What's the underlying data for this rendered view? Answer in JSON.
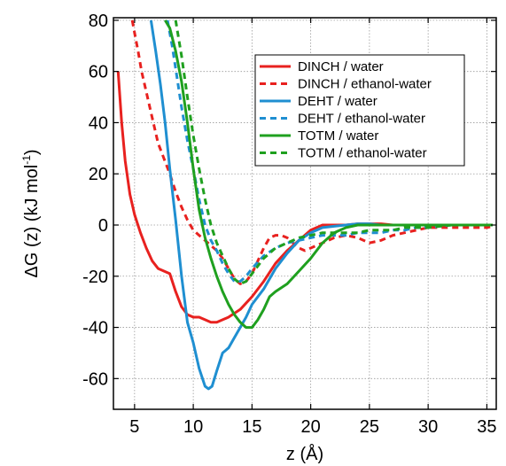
{
  "chart_data": {
    "type": "line",
    "xlabel": "z (Å)",
    "ylabel": "ΔG (z) (kJ mol",
    "ylabel_sup": "-1",
    "ylabel_close": ")",
    "xlim": [
      3.2,
      35.8
    ],
    "ylim": [
      -72,
      81
    ],
    "xticks": [
      5,
      10,
      15,
      20,
      25,
      30,
      35
    ],
    "xtick_labels": [
      "5",
      "10",
      "15",
      "20",
      "25",
      "30",
      "35"
    ],
    "yticks": [
      -60,
      -40,
      -20,
      0,
      20,
      40,
      60,
      80
    ],
    "ytick_labels": [
      "-60",
      "-40",
      "-20",
      "0",
      "20",
      "40",
      "60",
      "80"
    ],
    "grid": true,
    "legend_position": "top-right",
    "series": [
      {
        "name": "DINCH / water",
        "color": "#e8211f",
        "dash": "solid",
        "x": [
          3.6,
          3.9,
          4.2,
          4.6,
          5.0,
          5.5,
          6.0,
          6.5,
          7.0,
          7.5,
          8.0,
          8.5,
          9.0,
          9.5,
          10.0,
          10.5,
          11.0,
          11.5,
          12.0,
          13.0,
          14.0,
          15.0,
          16.0,
          17.0,
          18.0,
          19.0,
          20.0,
          21.0,
          22.0,
          23.0,
          24.0,
          25.0,
          26.0,
          27.0,
          28.0,
          29.0,
          30.0,
          32.0,
          34.0,
          35.5
        ],
        "y": [
          60,
          40,
          25,
          12,
          4,
          -3,
          -9,
          -14,
          -17,
          -18,
          -19,
          -26,
          -32,
          -35,
          -36,
          -36,
          -37,
          -38,
          -38,
          -36,
          -33,
          -28,
          -22,
          -15,
          -10,
          -6,
          -2,
          0,
          0,
          0,
          0.5,
          0.5,
          0.5,
          0,
          0,
          0,
          0,
          0,
          0,
          0
        ]
      },
      {
        "name": "DINCH / ethanol-water",
        "color": "#e8211f",
        "dash": "dashed",
        "x": [
          4.8,
          5.0,
          5.3,
          5.6,
          6.0,
          6.5,
          7.0,
          7.5,
          8.0,
          8.5,
          9.0,
          9.5,
          10.0,
          10.5,
          11.0,
          11.5,
          12.0,
          12.5,
          13.0,
          13.5,
          14.0,
          14.5,
          15.0,
          15.5,
          16.0,
          16.5,
          17.0,
          17.5,
          18.0,
          18.5,
          19.0,
          19.5,
          20.0,
          21.0,
          22.0,
          23.0,
          24.0,
          25.0,
          26.0,
          27.0,
          28.0,
          29.0,
          30.0,
          31.0,
          32.0,
          33.0,
          34.0,
          35.0,
          35.5
        ],
        "y": [
          80,
          75,
          68,
          60,
          52,
          42,
          32,
          26,
          20,
          13,
          7,
          2,
          -2,
          -4,
          -6,
          -8,
          -10,
          -13,
          -17,
          -21,
          -23,
          -22,
          -19,
          -14,
          -9,
          -5,
          -4,
          -4,
          -5,
          -7,
          -9,
          -10,
          -9,
          -7,
          -5,
          -4,
          -5,
          -7,
          -6,
          -4,
          -3,
          -2,
          -1,
          -1,
          -1,
          -1,
          -1,
          -1,
          -0.5
        ]
      },
      {
        "name": "DEHT / water",
        "color": "#1f8fd1",
        "dash": "solid",
        "x": [
          6.4,
          6.8,
          7.2,
          7.6,
          8.0,
          8.5,
          9.0,
          9.5,
          10.0,
          10.5,
          11.0,
          11.3,
          11.6,
          12.0,
          12.5,
          13.0,
          13.5,
          14.0,
          14.5,
          15.0,
          16.0,
          17.0,
          18.0,
          19.0,
          20.0,
          21.0,
          22.0,
          23.0,
          24.0,
          25.0,
          26.0,
          27.0,
          28.0,
          30.0,
          32.0,
          35.5
        ],
        "y": [
          80,
          68,
          55,
          40,
          22,
          2,
          -20,
          -38,
          -46,
          -56,
          -63,
          -64,
          -63,
          -57,
          -50,
          -48,
          -44,
          -40,
          -36,
          -31,
          -25,
          -17,
          -11,
          -6,
          -3,
          -1,
          -0.5,
          0,
          0.5,
          0.5,
          0,
          0,
          0,
          0,
          0,
          0
        ]
      },
      {
        "name": "DEHT / ethanol-water",
        "color": "#1f8fd1",
        "dash": "dashed",
        "x": [
          7.8,
          8.2,
          8.6,
          9.0,
          9.5,
          10.0,
          10.5,
          11.0,
          11.5,
          12.0,
          12.5,
          13.0,
          13.5,
          14.0,
          14.5,
          15.0,
          16.0,
          17.0,
          18.0,
          19.0,
          20.0,
          21.0,
          22.0,
          23.0,
          24.0,
          25.0,
          26.0,
          27.0,
          28.0,
          29.0,
          30.0,
          32.0,
          35.5
        ],
        "y": [
          80,
          70,
          58,
          46,
          33,
          22,
          10,
          0,
          -6,
          -10,
          -15,
          -19,
          -22,
          -22,
          -20,
          -17,
          -12,
          -9,
          -7,
          -6,
          -5,
          -4,
          -4,
          -4,
          -3,
          -3,
          -3,
          -2,
          -2,
          -1,
          -1,
          0,
          0
        ]
      },
      {
        "name": "TOTM / water",
        "color": "#1fa01f",
        "dash": "solid",
        "x": [
          7.6,
          8.0,
          8.5,
          9.0,
          9.5,
          10.0,
          10.5,
          11.0,
          11.5,
          12.0,
          12.5,
          13.0,
          13.5,
          14.0,
          14.5,
          15.0,
          15.5,
          16.0,
          16.5,
          17.0,
          18.0,
          19.0,
          20.0,
          21.0,
          22.0,
          23.0,
          24.0,
          25.0,
          26.0,
          27.0,
          28.0,
          30.0,
          32.0,
          35.5
        ],
        "y": [
          80,
          77,
          68,
          56,
          40,
          22,
          6,
          -5,
          -13,
          -20,
          -26,
          -31,
          -35,
          -38,
          -40,
          -40,
          -37,
          -33,
          -28,
          -26,
          -23,
          -18,
          -13,
          -7,
          -3,
          -1,
          0,
          0,
          0,
          0,
          0,
          0,
          0,
          0
        ]
      },
      {
        "name": "TOTM / ethanol-water",
        "color": "#1fa01f",
        "dash": "dashed",
        "x": [
          8.5,
          9.0,
          9.5,
          10.0,
          10.5,
          11.0,
          11.5,
          12.0,
          12.5,
          13.0,
          13.5,
          14.0,
          14.5,
          15.0,
          15.5,
          16.0,
          17.0,
          18.0,
          19.0,
          20.0,
          21.0,
          22.0,
          23.0,
          24.0,
          25.0,
          26.0,
          27.0,
          28.0,
          29.0,
          30.0,
          32.0,
          35.5
        ],
        "y": [
          80,
          66,
          50,
          35,
          22,
          10,
          0,
          -7,
          -12,
          -17,
          -21,
          -23,
          -22,
          -19,
          -16,
          -13,
          -9,
          -7,
          -5,
          -4,
          -3,
          -3,
          -3,
          -3,
          -2,
          -2,
          -2,
          -1,
          -1,
          -1,
          0,
          0
        ]
      }
    ]
  }
}
